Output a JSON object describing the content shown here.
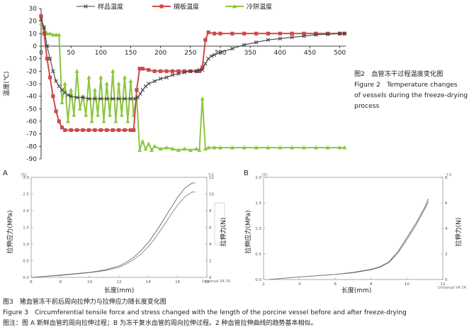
{
  "fig2": {
    "chart_data": {
      "type": "line",
      "ylabel": "温度(℃)",
      "xlim": [
        0,
        510
      ],
      "ylim": [
        -90,
        30
      ],
      "xticks": [
        0,
        50,
        100,
        150,
        200,
        250,
        300,
        350,
        400,
        450,
        500
      ],
      "yticks": [
        30,
        20,
        10,
        0,
        -10,
        -20,
        -30,
        -40,
        -50,
        -60,
        -70,
        -80,
        -90
      ],
      "legend": "top",
      "series": [
        {
          "name": "样品温度",
          "color": "#444444",
          "marker": "x",
          "points": [
            [
              0,
              22
            ],
            [
              5,
              15
            ],
            [
              10,
              0
            ],
            [
              15,
              -10
            ],
            [
              20,
              -20
            ],
            [
              25,
              -28
            ],
            [
              30,
              -32
            ],
            [
              35,
              -35
            ],
            [
              40,
              -37
            ],
            [
              45,
              -39
            ],
            [
              50,
              -40
            ],
            [
              60,
              -41
            ],
            [
              70,
              -41
            ],
            [
              80,
              -42
            ],
            [
              90,
              -42
            ],
            [
              100,
              -42
            ],
            [
              110,
              -42
            ],
            [
              120,
              -42
            ],
            [
              130,
              -42
            ],
            [
              140,
              -42
            ],
            [
              150,
              -42
            ],
            [
              158,
              -42
            ],
            [
              162,
              -41
            ],
            [
              166,
              -38
            ],
            [
              170,
              -35
            ],
            [
              175,
              -32
            ],
            [
              180,
              -30
            ],
            [
              190,
              -28
            ],
            [
              200,
              -26
            ],
            [
              210,
              -25
            ],
            [
              220,
              -23
            ],
            [
              230,
              -22
            ],
            [
              240,
              -21
            ],
            [
              250,
              -20
            ],
            [
              260,
              -20
            ],
            [
              265,
              -19
            ],
            [
              270,
              -19
            ],
            [
              275,
              -14
            ],
            [
              280,
              -10
            ],
            [
              285,
              -8
            ],
            [
              290,
              -7
            ],
            [
              300,
              -5
            ],
            [
              320,
              -2
            ],
            [
              340,
              1
            ],
            [
              360,
              3
            ],
            [
              380,
              5
            ],
            [
              400,
              6
            ],
            [
              420,
              7
            ],
            [
              440,
              8
            ],
            [
              460,
              9
            ],
            [
              480,
              9.5
            ],
            [
              500,
              10
            ],
            [
              508,
              10
            ]
          ]
        },
        {
          "name": "搁板温度",
          "color": "#cc4a4a",
          "marker": "square",
          "points": [
            [
              0,
              24
            ],
            [
              5,
              10
            ],
            [
              10,
              -10
            ],
            [
              15,
              -25
            ],
            [
              20,
              -40
            ],
            [
              25,
              -52
            ],
            [
              30,
              -60
            ],
            [
              35,
              -65
            ],
            [
              40,
              -67
            ],
            [
              50,
              -67
            ],
            [
              60,
              -67
            ],
            [
              70,
              -67
            ],
            [
              80,
              -67
            ],
            [
              90,
              -67
            ],
            [
              100,
              -67
            ],
            [
              110,
              -67
            ],
            [
              120,
              -67
            ],
            [
              130,
              -67
            ],
            [
              140,
              -67
            ],
            [
              150,
              -67
            ],
            [
              155,
              -67
            ],
            [
              160,
              -35
            ],
            [
              165,
              -18
            ],
            [
              170,
              -18
            ],
            [
              180,
              -19
            ],
            [
              190,
              -20
            ],
            [
              200,
              -20
            ],
            [
              210,
              -20
            ],
            [
              220,
              -20
            ],
            [
              230,
              -20
            ],
            [
              240,
              -20
            ],
            [
              250,
              -20
            ],
            [
              260,
              -20
            ],
            [
              265,
              -20
            ],
            [
              270,
              -17
            ],
            [
              275,
              5
            ],
            [
              280,
              11
            ],
            [
              290,
              10
            ],
            [
              300,
              10
            ],
            [
              320,
              10
            ],
            [
              340,
              10
            ],
            [
              360,
              10
            ],
            [
              380,
              10
            ],
            [
              400,
              10
            ],
            [
              420,
              10
            ],
            [
              440,
              10
            ],
            [
              460,
              10
            ],
            [
              480,
              10
            ],
            [
              500,
              10
            ],
            [
              508,
              10
            ]
          ]
        },
        {
          "name": "冷阱温度",
          "color": "#8cc63f",
          "marker": "triangle",
          "points": [
            [
              0,
              18
            ],
            [
              5,
              15
            ],
            [
              10,
              10
            ],
            [
              15,
              10
            ],
            [
              20,
              9
            ],
            [
              25,
              9
            ],
            [
              30,
              9
            ],
            [
              35,
              -45
            ],
            [
              40,
              -30
            ],
            [
              45,
              -60
            ],
            [
              50,
              -35
            ],
            [
              55,
              -55
            ],
            [
              60,
              -20
            ],
            [
              65,
              -50
            ],
            [
              70,
              -40
            ],
            [
              75,
              -55
            ],
            [
              80,
              -25
            ],
            [
              85,
              -60
            ],
            [
              90,
              -35
            ],
            [
              95,
              -55
            ],
            [
              100,
              -25
            ],
            [
              105,
              -60
            ],
            [
              110,
              -30
            ],
            [
              115,
              -55
            ],
            [
              120,
              -20
            ],
            [
              125,
              -60
            ],
            [
              130,
              -30
            ],
            [
              135,
              -55
            ],
            [
              140,
              -25
            ],
            [
              145,
              -60
            ],
            [
              150,
              -28
            ],
            [
              155,
              -55
            ],
            [
              160,
              -40
            ],
            [
              165,
              -83
            ],
            [
              170,
              -76
            ],
            [
              175,
              -82
            ],
            [
              180,
              -78
            ],
            [
              185,
              -83
            ],
            [
              190,
              -80
            ],
            [
              200,
              -82
            ],
            [
              210,
              -81
            ],
            [
              220,
              -82
            ],
            [
              230,
              -83
            ],
            [
              240,
              -82
            ],
            [
              250,
              -83
            ],
            [
              260,
              -82
            ],
            [
              265,
              -83
            ],
            [
              270,
              -42
            ],
            [
              275,
              -82
            ],
            [
              280,
              -81
            ],
            [
              290,
              -81
            ],
            [
              300,
              -81
            ],
            [
              320,
              -81
            ],
            [
              340,
              -81
            ],
            [
              360,
              -81
            ],
            [
              380,
              -81
            ],
            [
              400,
              -81
            ],
            [
              420,
              -81
            ],
            [
              440,
              -81
            ],
            [
              460,
              -81
            ],
            [
              480,
              -81
            ],
            [
              500,
              -81
            ],
            [
              508,
              -81
            ]
          ]
        }
      ]
    },
    "caption_cn": "图2　血管冻干过程温度变化图",
    "caption_en_1": "Figure 2　Temperature changes",
    "caption_en_2": "of vessels during the freeze-drying",
    "caption_en_3": "process"
  },
  "fig3a": {
    "panel_label": "A",
    "box_tag": "[5]",
    "y2_tag": "Y-2",
    "software": "Universal V4.7A",
    "xlabel": "长度(mm)",
    "ylabel": "拉伸应力(MPa)",
    "y2label": "拉伸力(N)",
    "chart_data": {
      "type": "line",
      "xlim": [
        6,
        18
      ],
      "ylim": [
        0,
        3.0
      ],
      "y2lim": [
        0,
        12
      ],
      "xticks": [
        6,
        8,
        10,
        12,
        14,
        16,
        18
      ],
      "yticks": [
        0.0,
        0.5,
        1.0,
        1.5,
        2.0,
        2.5,
        3.0
      ],
      "y2ticks": [
        0,
        2,
        4,
        6,
        8,
        10,
        12
      ],
      "series": [
        {
          "values_x": [
            6,
            8,
            10,
            11,
            12,
            12.5,
            13,
            13.5,
            14,
            14.5,
            15,
            15.5,
            16,
            16.5,
            17,
            17.2
          ],
          "values_y": [
            0.0,
            0.07,
            0.15,
            0.22,
            0.34,
            0.45,
            0.6,
            0.8,
            1.05,
            1.35,
            1.7,
            2.05,
            2.4,
            2.68,
            2.83,
            2.83
          ]
        },
        {
          "values_x": [
            6,
            8,
            10,
            11,
            12,
            12.5,
            13,
            13.5,
            14,
            14.5,
            15,
            15.5,
            16,
            16.5,
            17,
            17.2
          ],
          "values_y": [
            0.0,
            0.06,
            0.14,
            0.2,
            0.3,
            0.4,
            0.53,
            0.7,
            0.92,
            1.2,
            1.52,
            1.85,
            2.17,
            2.42,
            2.56,
            2.56
          ]
        }
      ]
    }
  },
  "fig3b": {
    "panel_label": "B",
    "box_tag": "[5]",
    "y2_tag": "Y-2",
    "software": "Universal V4.7A",
    "xlabel": "长度(mm)",
    "ylabel": "拉伸应力(MPa)",
    "y2label": "拉伸力(N)",
    "chart_data": {
      "type": "line",
      "xlim": [
        2,
        12
      ],
      "ylim": [
        0,
        2.0
      ],
      "y2lim": [
        0,
        8
      ],
      "xticks": [
        2,
        4,
        6,
        8,
        10,
        12
      ],
      "yticks": [
        0.0,
        0.5,
        1.0,
        1.5,
        2.0
      ],
      "y2ticks": [
        0,
        2,
        4,
        6,
        8
      ],
      "series": [
        {
          "values_x": [
            2.3,
            4,
            6,
            7,
            8,
            8.5,
            9,
            9.5,
            10,
            10.5,
            11,
            11.2
          ],
          "values_y": [
            0.0,
            0.05,
            0.1,
            0.14,
            0.2,
            0.25,
            0.35,
            0.55,
            0.82,
            1.1,
            1.42,
            1.58
          ]
        },
        {
          "values_x": [
            2.3,
            4,
            6,
            7,
            8,
            8.5,
            9,
            9.5,
            10,
            10.5,
            11,
            11.2
          ],
          "values_y": [
            0.0,
            0.05,
            0.1,
            0.13,
            0.19,
            0.24,
            0.33,
            0.52,
            0.78,
            1.06,
            1.38,
            1.52
          ]
        }
      ]
    }
  },
  "fig3_caption": {
    "cn": "图3　猪血管冻干前后周向拉伸力与拉伸应力随长度变化图",
    "en": "Figure 3　Circumferential tensile force and stress changed with the length of the porcine vessel before and after freeze-drying",
    "note": "图注：图 A 新鲜血管的周向拉伸过程；B 为冻干复水血管的周向拉伸过程。2 种血管拉伸曲线的趋势基本相似。"
  }
}
